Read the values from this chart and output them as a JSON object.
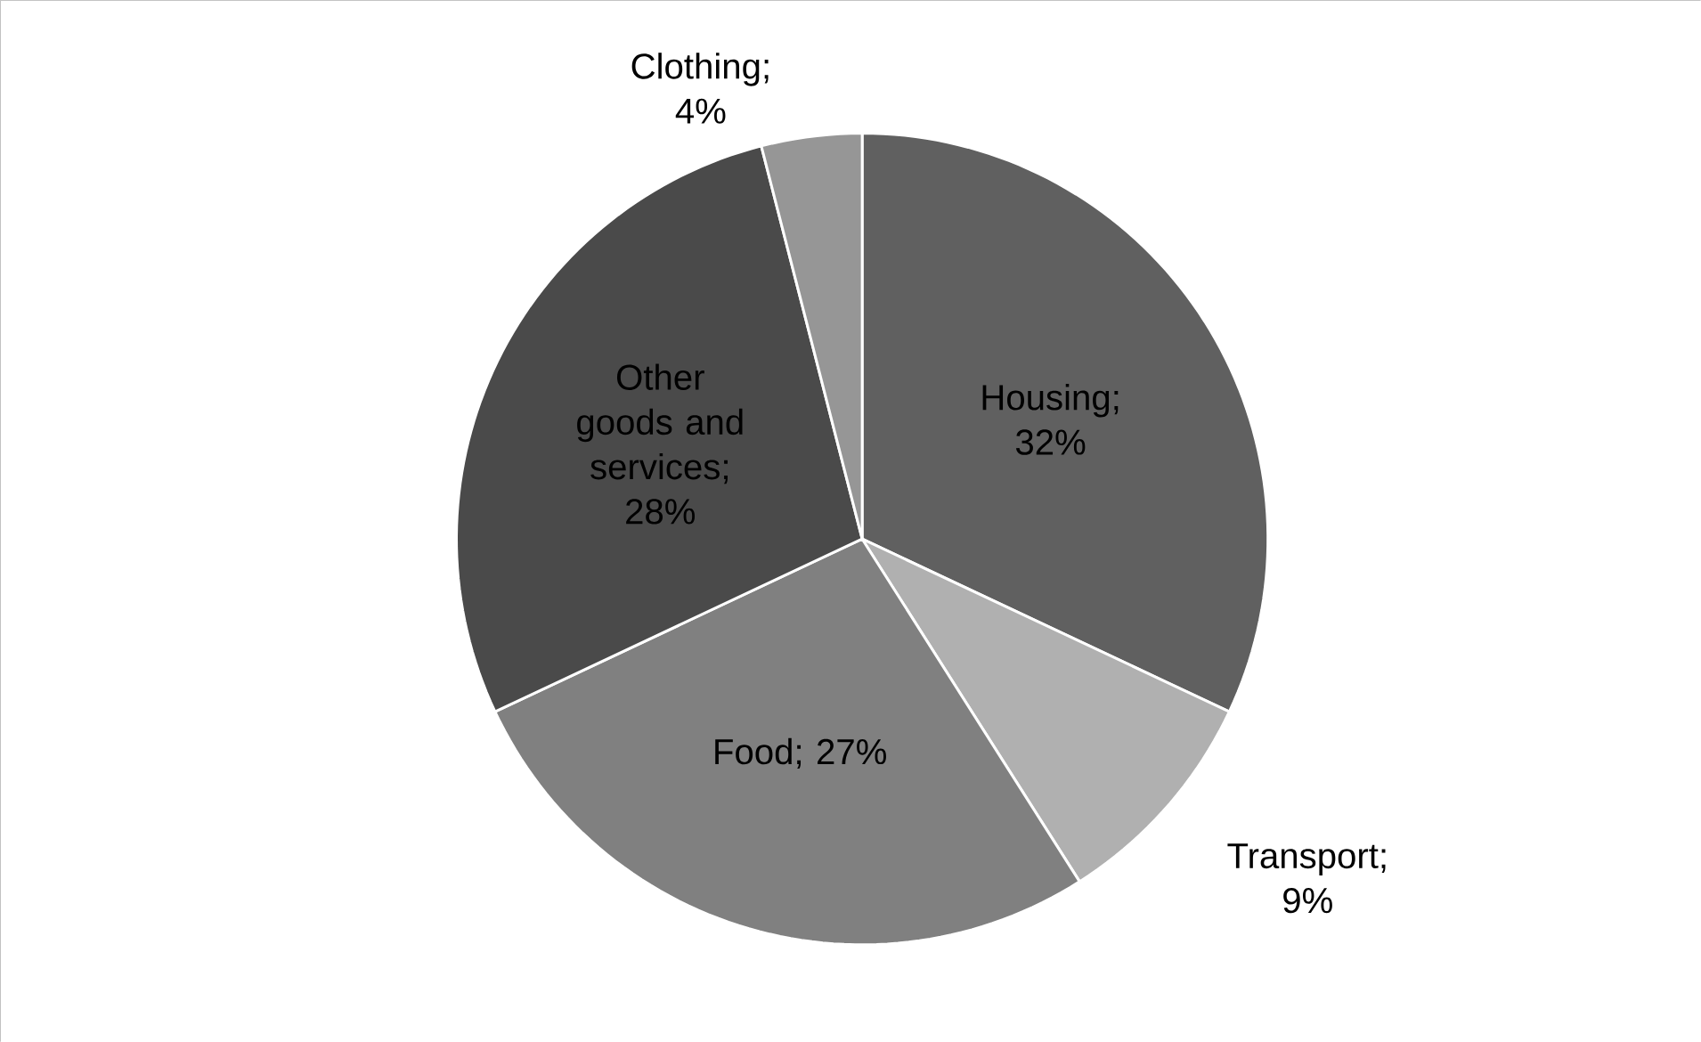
{
  "chart_data": {
    "type": "pie",
    "categories": [
      "Housing",
      "Transport",
      "Food",
      "Other goods and services",
      "Clothing"
    ],
    "values": [
      32,
      9,
      27,
      28,
      4
    ],
    "value_labels": [
      "; 32%",
      "; 9%",
      "; 27%",
      "; 28%",
      "; 4%"
    ],
    "colors": [
      "#606060",
      "#b0b0b0",
      "#808080",
      "#4a4a4a",
      "#969696"
    ]
  }
}
